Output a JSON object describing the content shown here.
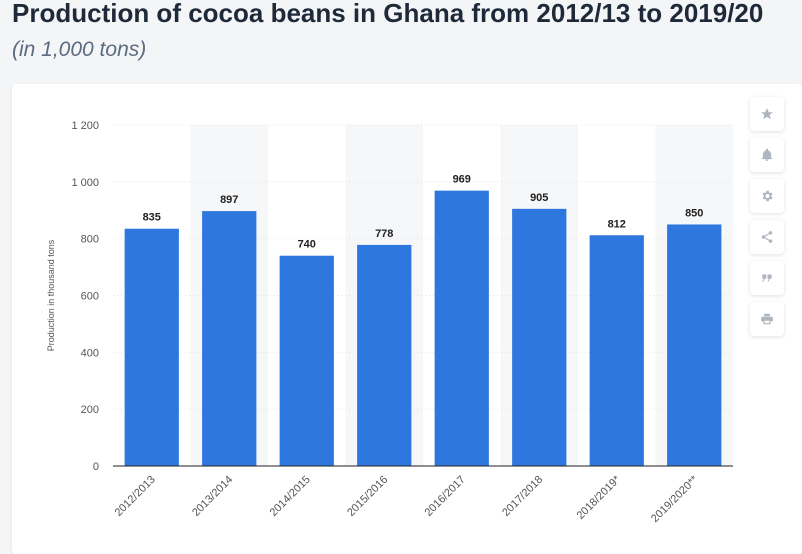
{
  "header": {
    "title": "Production of cocoa beans in Ghana from 2012/13 to 2019/20",
    "subtitle": "(in 1,000 tons)"
  },
  "toolbar": {
    "buttons": [
      "star-icon",
      "bell-icon",
      "gear-icon",
      "share-icon",
      "quote-icon",
      "print-icon"
    ]
  },
  "colors": {
    "bar": "#2d77de",
    "band": "#f6f7f9",
    "grid": "#dfe2e6",
    "axis": "#222222"
  },
  "chart_data": {
    "type": "bar",
    "title": "Production of cocoa beans in Ghana from 2012/13 to 2019/20",
    "subtitle": "(in 1,000 tons)",
    "xlabel": "",
    "ylabel": "Production in thousand tons",
    "categories": [
      "2012/2013",
      "2013/2014",
      "2014/2015",
      "2015/2016",
      "2016/2017",
      "2017/2018",
      "2018/2019*",
      "2019/2020**"
    ],
    "values": [
      835,
      897,
      740,
      778,
      969,
      905,
      812,
      850
    ],
    "value_labels": [
      "835",
      "897",
      "740",
      "778",
      "969",
      "905",
      "812",
      "850"
    ],
    "ylim": [
      0,
      1200
    ],
    "yticks": [
      0,
      200,
      400,
      600,
      800,
      1000,
      1200
    ],
    "ytick_labels": [
      "0",
      "200",
      "400",
      "600",
      "800",
      "1 000",
      "1 200"
    ],
    "grid": true
  }
}
